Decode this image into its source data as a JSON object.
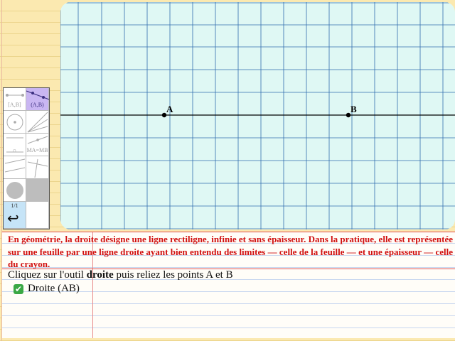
{
  "canvas": {
    "points": [
      {
        "label": "A"
      },
      {
        "label": "B"
      }
    ]
  },
  "palette": {
    "tools": [
      {
        "name": "segment",
        "label": "[A,B]",
        "active": false
      },
      {
        "name": "line",
        "label": "(A,B)",
        "active": true
      },
      {
        "name": "circle",
        "label": "",
        "active": false
      },
      {
        "name": "ray-fan",
        "label": "",
        "active": false
      },
      {
        "name": "compass",
        "label": "∩",
        "active": false
      },
      {
        "name": "midpoint",
        "label": "MA=MB",
        "active": false
      },
      {
        "name": "parallel",
        "label": "",
        "active": false
      },
      {
        "name": "perpendicular",
        "label": "",
        "active": false
      },
      {
        "name": "color",
        "label": "",
        "active": false
      },
      {
        "name": "fill",
        "label": "",
        "active": false
      },
      {
        "name": "undo",
        "label": "1/1",
        "active": false
      },
      {
        "name": "blank",
        "label": "",
        "active": false
      }
    ]
  },
  "notice": "En géométrie, la droite désigne une ligne rectiligne, infinie et sans épaisseur. Dans la pratique, elle est représentée sur une feuille par une ligne droite ayant bien entendu des limites — celle de la feuille — et une épaisseur — celle du crayon.",
  "instruction": {
    "before": "Cliquez sur l'outil ",
    "bold": "droite",
    "after": " puis reliez les points A et B"
  },
  "task": {
    "label": "Droite (AB)",
    "status": "done"
  },
  "colors": {
    "grid_bg": "#dff8f4",
    "grid_line": "#1f5fa8",
    "notice_text": "#d01010",
    "check": "#3aa845"
  }
}
